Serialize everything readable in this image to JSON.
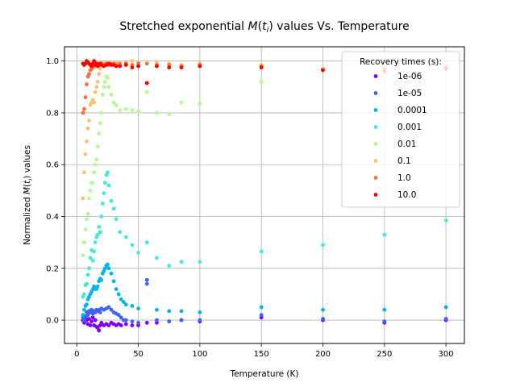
{
  "chart_data": {
    "type": "scatter",
    "title": "Stretched exponential M(t_i) values Vs. Temperature",
    "title_parts": [
      "Stretched exponential ",
      "M",
      "(",
      "t",
      "i",
      ")",
      " values Vs. Temperature"
    ],
    "xlabel": "Temperature (K)",
    "ylabel": "Normalized M(t_i) values",
    "ylabel_parts": [
      "Normalized ",
      "M",
      "(",
      "t",
      "i",
      ")",
      " values"
    ],
    "xlim": [
      -10,
      315
    ],
    "ylim": [
      -0.09,
      1.055
    ],
    "x_ticks": [
      0,
      50,
      100,
      150,
      200,
      250,
      300
    ],
    "y_ticks": [
      0.0,
      0.2,
      0.4,
      0.6,
      0.8,
      1.0
    ],
    "x_tick_labels": [
      "0",
      "50",
      "100",
      "150",
      "200",
      "250",
      "300"
    ],
    "y_tick_labels": [
      "0.0",
      "0.2",
      "0.4",
      "0.6",
      "0.8",
      "1.0"
    ],
    "grid": true,
    "legend": {
      "title": "Recovery times (s):",
      "placement": "top-right"
    },
    "series": [
      {
        "name": "1e-06",
        "color": "#8000ff",
        "points": [
          [
            5,
            0.0
          ],
          [
            6,
            -0.01
          ],
          [
            7,
            0.01
          ],
          [
            8,
            0.0
          ],
          [
            9,
            -0.015
          ],
          [
            10,
            0.005
          ],
          [
            11,
            -0.02
          ],
          [
            12,
            -0.005
          ],
          [
            13,
            0.01
          ],
          [
            14,
            -0.02
          ],
          [
            15,
            0.0
          ],
          [
            16,
            -0.025
          ],
          [
            17,
            -0.03
          ],
          [
            18,
            -0.04
          ],
          [
            19,
            -0.02
          ],
          [
            20,
            -0.01
          ],
          [
            22,
            -0.02
          ],
          [
            24,
            -0.015
          ],
          [
            26,
            -0.02
          ],
          [
            28,
            -0.01
          ],
          [
            30,
            -0.015
          ],
          [
            32,
            -0.02
          ],
          [
            34,
            -0.015
          ],
          [
            36,
            -0.02
          ],
          [
            40,
            -0.015
          ],
          [
            45,
            -0.02
          ],
          [
            50,
            -0.02
          ],
          [
            57,
            -0.01
          ],
          [
            65,
            -0.01
          ],
          [
            75,
            -0.005
          ],
          [
            85,
            0.0
          ],
          [
            100,
            -0.005
          ],
          [
            150,
            0.01
          ],
          [
            200,
            0.0
          ],
          [
            250,
            -0.01
          ],
          [
            300,
            0.0
          ]
        ]
      },
      {
        "name": "1e-05",
        "color": "#4062fa",
        "points": [
          [
            5,
            0.01
          ],
          [
            6,
            0.0
          ],
          [
            7,
            0.015
          ],
          [
            8,
            0.03
          ],
          [
            9,
            0.02
          ],
          [
            10,
            0.035
          ],
          [
            11,
            0.03
          ],
          [
            12,
            0.04
          ],
          [
            13,
            0.025
          ],
          [
            14,
            0.035
          ],
          [
            15,
            0.03
          ],
          [
            16,
            0.04
          ],
          [
            17,
            0.035
          ],
          [
            18,
            0.04
          ],
          [
            19,
            0.03
          ],
          [
            20,
            0.045
          ],
          [
            22,
            0.04
          ],
          [
            24,
            0.045
          ],
          [
            26,
            0.05
          ],
          [
            28,
            0.04
          ],
          [
            30,
            0.03
          ],
          [
            32,
            0.025
          ],
          [
            34,
            0.02
          ],
          [
            36,
            0.01
          ],
          [
            38,
            0.0
          ],
          [
            40,
            0.0
          ],
          [
            45,
            -0.005
          ],
          [
            50,
            -0.01
          ],
          [
            57,
            0.155
          ],
          [
            57,
            0.14
          ],
          [
            65,
            0.0
          ],
          [
            75,
            -0.005
          ],
          [
            85,
            0.0
          ],
          [
            100,
            0.0
          ],
          [
            150,
            0.02
          ],
          [
            200,
            0.005
          ],
          [
            250,
            -0.005
          ],
          [
            300,
            0.005
          ]
        ]
      },
      {
        "name": "0.0001",
        "color": "#00b5eb",
        "points": [
          [
            5,
            0.02
          ],
          [
            6,
            0.04
          ],
          [
            7,
            0.055
          ],
          [
            8,
            0.06
          ],
          [
            9,
            0.08
          ],
          [
            10,
            0.09
          ],
          [
            11,
            0.1
          ],
          [
            12,
            0.11
          ],
          [
            13,
            0.12
          ],
          [
            14,
            0.13
          ],
          [
            15,
            0.12
          ],
          [
            16,
            0.12
          ],
          [
            17,
            0.13
          ],
          [
            18,
            0.15
          ],
          [
            19,
            0.16
          ],
          [
            20,
            0.155
          ],
          [
            21,
            0.18
          ],
          [
            22,
            0.19
          ],
          [
            23,
            0.2
          ],
          [
            24,
            0.21
          ],
          [
            25,
            0.215
          ],
          [
            26,
            0.2
          ],
          [
            28,
            0.18
          ],
          [
            30,
            0.15
          ],
          [
            32,
            0.12
          ],
          [
            34,
            0.1
          ],
          [
            36,
            0.08
          ],
          [
            38,
            0.07
          ],
          [
            40,
            0.06
          ],
          [
            45,
            0.055
          ],
          [
            50,
            0.045
          ],
          [
            65,
            0.04
          ],
          [
            75,
            0.035
          ],
          [
            85,
            0.035
          ],
          [
            100,
            0.03
          ],
          [
            150,
            0.05
          ],
          [
            200,
            0.04
          ],
          [
            250,
            0.04
          ],
          [
            300,
            0.05
          ]
        ]
      },
      {
        "name": "0.001",
        "color": "#40ecd4",
        "points": [
          [
            5,
            0.09
          ],
          [
            6,
            0.1
          ],
          [
            7,
            0.135
          ],
          [
            8,
            0.14
          ],
          [
            9,
            0.175
          ],
          [
            10,
            0.2
          ],
          [
            11,
            0.24
          ],
          [
            12,
            0.27
          ],
          [
            13,
            0.23
          ],
          [
            14,
            0.265
          ],
          [
            15,
            0.3
          ],
          [
            16,
            0.32
          ],
          [
            17,
            0.33
          ],
          [
            18,
            0.36
          ],
          [
            19,
            0.34
          ],
          [
            20,
            0.4
          ],
          [
            21,
            0.45
          ],
          [
            22,
            0.49
          ],
          [
            23,
            0.53
          ],
          [
            24,
            0.56
          ],
          [
            25,
            0.57
          ],
          [
            26,
            0.52
          ],
          [
            28,
            0.46
          ],
          [
            30,
            0.43
          ],
          [
            32,
            0.39
          ],
          [
            35,
            0.34
          ],
          [
            40,
            0.32
          ],
          [
            45,
            0.29
          ],
          [
            50,
            0.26
          ],
          [
            57,
            0.3
          ],
          [
            65,
            0.24
          ],
          [
            75,
            0.21
          ],
          [
            85,
            0.225
          ],
          [
            100,
            0.225
          ],
          [
            150,
            0.265
          ],
          [
            200,
            0.29
          ],
          [
            250,
            0.33
          ],
          [
            300,
            0.385
          ]
        ]
      },
      {
        "name": "0.01",
        "color": "#b1fa96",
        "points": [
          [
            5,
            0.25
          ],
          [
            6,
            0.3
          ],
          [
            7,
            0.35
          ],
          [
            8,
            0.39
          ],
          [
            9,
            0.41
          ],
          [
            10,
            0.47
          ],
          [
            11,
            0.5
          ],
          [
            12,
            0.53
          ],
          [
            13,
            0.53
          ],
          [
            14,
            0.57
          ],
          [
            15,
            0.6
          ],
          [
            16,
            0.62
          ],
          [
            17,
            0.67
          ],
          [
            18,
            0.72
          ],
          [
            19,
            0.76
          ],
          [
            20,
            0.8
          ],
          [
            21,
            0.87
          ],
          [
            22,
            0.9
          ],
          [
            23,
            0.92
          ],
          [
            24,
            0.94
          ],
          [
            25,
            0.935
          ],
          [
            26,
            0.9
          ],
          [
            28,
            0.87
          ],
          [
            30,
            0.84
          ],
          [
            32,
            0.83
          ],
          [
            35,
            0.81
          ],
          [
            40,
            0.815
          ],
          [
            45,
            0.81
          ],
          [
            50,
            0.805
          ],
          [
            57,
            0.88
          ],
          [
            65,
            0.8
          ],
          [
            75,
            0.795
          ],
          [
            85,
            0.84
          ],
          [
            100,
            0.835
          ],
          [
            150,
            0.92
          ],
          [
            200,
            0.965
          ],
          [
            250,
            0.97
          ],
          [
            300,
            0.975
          ]
        ]
      },
      {
        "name": "0.1",
        "color": "#f5c46e",
        "points": [
          [
            5,
            0.47
          ],
          [
            6,
            0.57
          ],
          [
            7,
            0.64
          ],
          [
            8,
            0.69
          ],
          [
            9,
            0.74
          ],
          [
            10,
            0.77
          ],
          [
            11,
            0.83
          ],
          [
            12,
            0.84
          ],
          [
            13,
            0.85
          ],
          [
            14,
            0.84
          ],
          [
            15,
            0.88
          ],
          [
            16,
            0.9
          ],
          [
            17,
            0.92
          ],
          [
            18,
            0.95
          ],
          [
            19,
            0.97
          ],
          [
            20,
            0.985
          ],
          [
            22,
            0.99
          ],
          [
            24,
            0.995
          ],
          [
            26,
            0.99
          ],
          [
            28,
            0.985
          ],
          [
            30,
            0.99
          ],
          [
            32,
            0.995
          ],
          [
            35,
            0.99
          ],
          [
            40,
            0.995
          ],
          [
            45,
            1.0
          ],
          [
            50,
            0.995
          ],
          [
            57,
            0.99
          ],
          [
            65,
            0.995
          ],
          [
            75,
            0.99
          ],
          [
            85,
            0.985
          ],
          [
            100,
            0.99
          ],
          [
            150,
            0.985
          ],
          [
            200,
            0.97
          ],
          [
            250,
            0.975
          ],
          [
            300,
            0.98
          ]
        ]
      },
      {
        "name": "1.0",
        "color": "#ff6e3a",
        "points": [
          [
            5,
            0.8
          ],
          [
            6,
            0.815
          ],
          [
            7,
            0.86
          ],
          [
            8,
            0.91
          ],
          [
            9,
            0.94
          ],
          [
            10,
            0.95
          ],
          [
            11,
            0.965
          ],
          [
            12,
            0.97
          ],
          [
            13,
            0.975
          ],
          [
            14,
            0.98
          ],
          [
            15,
            0.985
          ],
          [
            16,
            0.985
          ],
          [
            17,
            0.99
          ],
          [
            18,
            0.985
          ],
          [
            19,
            0.99
          ],
          [
            20,
            0.99
          ],
          [
            22,
            0.985
          ],
          [
            24,
            0.99
          ],
          [
            26,
            0.985
          ],
          [
            28,
            0.99
          ],
          [
            30,
            0.99
          ],
          [
            32,
            0.985
          ],
          [
            35,
            0.99
          ],
          [
            40,
            0.99
          ],
          [
            45,
            0.985
          ],
          [
            50,
            0.99
          ],
          [
            57,
            0.99
          ],
          [
            65,
            0.985
          ],
          [
            75,
            0.985
          ],
          [
            85,
            0.98
          ],
          [
            100,
            0.985
          ],
          [
            150,
            0.98
          ],
          [
            200,
            0.965
          ],
          [
            250,
            0.97
          ],
          [
            300,
            0.975
          ]
        ]
      },
      {
        "name": "10.0",
        "color": "#ff0000",
        "points": [
          [
            5,
            0.99
          ],
          [
            6,
            0.985
          ],
          [
            7,
            0.99
          ],
          [
            8,
            1.0
          ],
          [
            9,
            0.995
          ],
          [
            10,
            0.99
          ],
          [
            11,
            0.985
          ],
          [
            12,
            0.98
          ],
          [
            13,
            0.99
          ],
          [
            14,
            1.0
          ],
          [
            15,
            0.985
          ],
          [
            16,
            0.99
          ],
          [
            17,
            0.98
          ],
          [
            18,
            0.985
          ],
          [
            19,
            0.99
          ],
          [
            20,
            0.985
          ],
          [
            22,
            0.98
          ],
          [
            24,
            0.985
          ],
          [
            26,
            0.99
          ],
          [
            28,
            0.985
          ],
          [
            30,
            0.985
          ],
          [
            32,
            0.98
          ],
          [
            35,
            0.98
          ],
          [
            40,
            0.985
          ],
          [
            45,
            0.975
          ],
          [
            50,
            0.98
          ],
          [
            57,
            0.915
          ],
          [
            65,
            0.98
          ],
          [
            75,
            0.975
          ],
          [
            85,
            0.975
          ],
          [
            100,
            0.98
          ],
          [
            150,
            0.975
          ],
          [
            200,
            0.965
          ],
          [
            250,
            0.96
          ],
          [
            300,
            0.97
          ]
        ]
      }
    ]
  }
}
